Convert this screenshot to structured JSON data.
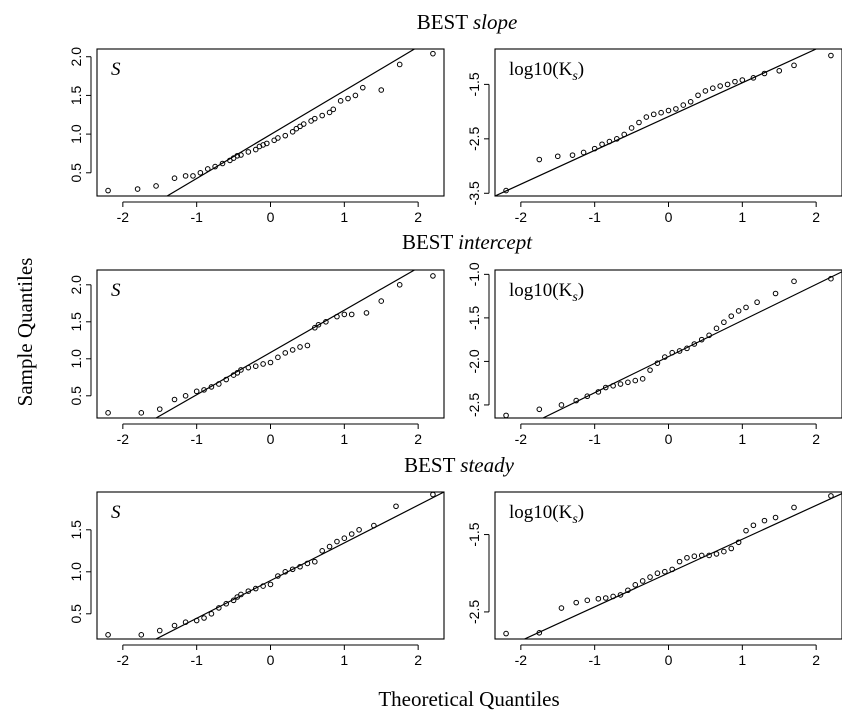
{
  "figure": {
    "xlabel": "Theoretical Quantiles",
    "ylabel": "Sample Quantiles"
  },
  "chart_data": [
    {
      "type": "scatter",
      "title_prefix": "BEST",
      "title_method": "slope",
      "panel_label": "S",
      "xlim": [
        -2.35,
        2.35
      ],
      "ylim": [
        0.2,
        2.1
      ],
      "xticks": [
        -2,
        -1,
        0,
        1,
        2
      ],
      "yticks": [
        0.5,
        1.0,
        1.5,
        2.0
      ],
      "ytick_labels": [
        "0.5",
        "1.0",
        "1.5",
        "2.0"
      ],
      "x": [
        -2.2,
        -1.8,
        -1.55,
        -1.3,
        -1.15,
        -1.05,
        -0.95,
        -0.85,
        -0.75,
        -0.65,
        -0.55,
        -0.5,
        -0.45,
        -0.4,
        -0.3,
        -0.2,
        -0.15,
        -0.1,
        -0.05,
        0.05,
        0.1,
        0.2,
        0.3,
        0.35,
        0.4,
        0.45,
        0.55,
        0.6,
        0.7,
        0.8,
        0.85,
        0.95,
        1.05,
        1.15,
        1.25,
        1.5,
        1.75,
        2.2
      ],
      "y": [
        0.27,
        0.29,
        0.33,
        0.43,
        0.46,
        0.46,
        0.5,
        0.55,
        0.58,
        0.62,
        0.66,
        0.69,
        0.72,
        0.73,
        0.77,
        0.8,
        0.84,
        0.86,
        0.88,
        0.92,
        0.95,
        0.98,
        1.03,
        1.07,
        1.1,
        1.13,
        1.17,
        1.2,
        1.24,
        1.28,
        1.32,
        1.43,
        1.46,
        1.5,
        1.6,
        1.57,
        1.9,
        2.04
      ],
      "ref_line": [
        [
          -1.4,
          0.2
        ],
        [
          1.95,
          2.1
        ]
      ]
    },
    {
      "type": "scatter",
      "title_prefix": "BEST",
      "title_method": "slope",
      "panel_label": "log10(K",
      "panel_label_sub": "s",
      "panel_label_close": ")",
      "xlim": [
        -2.35,
        2.35
      ],
      "ylim": [
        -3.55,
        -0.85
      ],
      "xticks": [
        -2,
        -1,
        0,
        1,
        2
      ],
      "yticks": [
        -3.5,
        -2.5,
        -1.5
      ],
      "ytick_labels": [
        "-3.5",
        "-2.5",
        "-1.5"
      ],
      "x": [
        -2.2,
        -1.75,
        -1.5,
        -1.3,
        -1.15,
        -1.0,
        -0.9,
        -0.8,
        -0.7,
        -0.6,
        -0.5,
        -0.4,
        -0.3,
        -0.2,
        -0.1,
        0.0,
        0.1,
        0.2,
        0.3,
        0.4,
        0.5,
        0.6,
        0.7,
        0.8,
        0.9,
        1.0,
        1.15,
        1.3,
        1.5,
        1.7,
        2.2
      ],
      "y": [
        -3.45,
        -2.88,
        -2.82,
        -2.8,
        -2.75,
        -2.68,
        -2.6,
        -2.55,
        -2.5,
        -2.42,
        -2.3,
        -2.2,
        -2.1,
        -2.05,
        -2.02,
        -1.98,
        -1.95,
        -1.88,
        -1.82,
        -1.7,
        -1.62,
        -1.57,
        -1.53,
        -1.5,
        -1.45,
        -1.42,
        -1.38,
        -1.3,
        -1.25,
        -1.15,
        -0.97
      ],
      "ref_line": [
        [
          -2.35,
          -3.55
        ],
        [
          2.0,
          -0.85
        ]
      ]
    },
    {
      "type": "scatter",
      "title_prefix": "BEST",
      "title_method": "intercept",
      "panel_label": "S",
      "xlim": [
        -2.35,
        2.35
      ],
      "ylim": [
        0.2,
        2.2
      ],
      "xticks": [
        -2,
        -1,
        0,
        1,
        2
      ],
      "yticks": [
        0.5,
        1.0,
        1.5,
        2.0
      ],
      "ytick_labels": [
        "0.5",
        "1.0",
        "1.5",
        "2.0"
      ],
      "x": [
        -2.2,
        -1.75,
        -1.5,
        -1.3,
        -1.15,
        -1.0,
        -0.9,
        -0.8,
        -0.7,
        -0.6,
        -0.5,
        -0.45,
        -0.4,
        -0.3,
        -0.2,
        -0.1,
        0.0,
        0.1,
        0.2,
        0.3,
        0.4,
        0.5,
        0.6,
        0.65,
        0.75,
        0.9,
        1.0,
        1.1,
        1.3,
        1.5,
        1.75,
        2.2
      ],
      "y": [
        0.27,
        0.27,
        0.32,
        0.45,
        0.5,
        0.56,
        0.58,
        0.62,
        0.66,
        0.72,
        0.78,
        0.81,
        0.85,
        0.88,
        0.9,
        0.93,
        0.95,
        1.02,
        1.08,
        1.12,
        1.16,
        1.18,
        1.42,
        1.46,
        1.5,
        1.57,
        1.6,
        1.6,
        1.62,
        1.78,
        2.0,
        2.12
      ],
      "ref_line": [
        [
          -1.55,
          0.2
        ],
        [
          1.95,
          2.2
        ]
      ]
    },
    {
      "type": "scatter",
      "title_prefix": "BEST",
      "title_method": "intercept",
      "panel_label": "log10(K",
      "panel_label_sub": "s",
      "panel_label_close": ")",
      "xlim": [
        -2.35,
        2.35
      ],
      "ylim": [
        -2.65,
        -0.95
      ],
      "xticks": [
        -2,
        -1,
        0,
        1,
        2
      ],
      "yticks": [
        -2.5,
        -2.0,
        -1.5,
        -1.0
      ],
      "ytick_labels": [
        "-2.5",
        "-2.0",
        "-1.5",
        "-1.0"
      ],
      "x": [
        -2.2,
        -1.75,
        -1.45,
        -1.25,
        -1.1,
        -0.95,
        -0.85,
        -0.75,
        -0.65,
        -0.55,
        -0.45,
        -0.35,
        -0.25,
        -0.15,
        -0.05,
        0.05,
        0.15,
        0.25,
        0.35,
        0.45,
        0.55,
        0.65,
        0.75,
        0.85,
        0.95,
        1.05,
        1.2,
        1.45,
        1.7,
        2.2
      ],
      "y": [
        -2.62,
        -2.55,
        -2.5,
        -2.45,
        -2.4,
        -2.35,
        -2.3,
        -2.28,
        -2.26,
        -2.24,
        -2.22,
        -2.2,
        -2.1,
        -2.02,
        -1.95,
        -1.9,
        -1.88,
        -1.85,
        -1.8,
        -1.75,
        -1.7,
        -1.62,
        -1.55,
        -1.48,
        -1.42,
        -1.38,
        -1.32,
        -1.22,
        -1.08,
        -1.05
      ],
      "ref_line": [
        [
          -1.7,
          -2.65
        ],
        [
          2.35,
          -0.97
        ]
      ]
    },
    {
      "type": "scatter",
      "title_prefix": "BEST",
      "title_method": "steady",
      "panel_label": "S",
      "xlim": [
        -2.35,
        2.35
      ],
      "ylim": [
        0.2,
        1.95
      ],
      "xticks": [
        -2,
        -1,
        0,
        1,
        2
      ],
      "yticks": [
        0.5,
        1.0,
        1.5
      ],
      "ytick_labels": [
        "0.5",
        "1.0",
        "1.5"
      ],
      "x": [
        -2.2,
        -1.75,
        -1.5,
        -1.3,
        -1.15,
        -1.0,
        -0.9,
        -0.8,
        -0.7,
        -0.6,
        -0.5,
        -0.45,
        -0.4,
        -0.3,
        -0.2,
        -0.1,
        0.0,
        0.1,
        0.2,
        0.3,
        0.4,
        0.5,
        0.6,
        0.7,
        0.8,
        0.9,
        1.0,
        1.1,
        1.2,
        1.4,
        1.7,
        2.2
      ],
      "y": [
        0.25,
        0.25,
        0.3,
        0.36,
        0.4,
        0.42,
        0.45,
        0.5,
        0.57,
        0.62,
        0.66,
        0.7,
        0.73,
        0.77,
        0.8,
        0.83,
        0.85,
        0.95,
        1.0,
        1.03,
        1.06,
        1.1,
        1.12,
        1.25,
        1.3,
        1.36,
        1.4,
        1.45,
        1.5,
        1.55,
        1.78,
        1.92
      ],
      "ref_line": [
        [
          -1.55,
          0.2
        ],
        [
          2.35,
          1.95
        ]
      ]
    },
    {
      "type": "scatter",
      "title_prefix": "BEST",
      "title_method": "steady",
      "panel_label": "log10(K",
      "panel_label_sub": "s",
      "panel_label_close": ")",
      "xlim": [
        -2.35,
        2.35
      ],
      "ylim": [
        -2.85,
        -0.95
      ],
      "xticks": [
        -2,
        -1,
        0,
        1,
        2
      ],
      "yticks": [
        -2.5,
        -1.5
      ],
      "ytick_labels": [
        "-2.5",
        "-1.5"
      ],
      "x": [
        -2.2,
        -1.75,
        -1.45,
        -1.25,
        -1.1,
        -0.95,
        -0.85,
        -0.75,
        -0.65,
        -0.55,
        -0.45,
        -0.35,
        -0.25,
        -0.15,
        -0.05,
        0.05,
        0.15,
        0.25,
        0.35,
        0.45,
        0.55,
        0.65,
        0.75,
        0.85,
        0.95,
        1.05,
        1.15,
        1.3,
        1.45,
        1.7,
        2.2
      ],
      "y": [
        -2.78,
        -2.77,
        -2.45,
        -2.38,
        -2.35,
        -2.33,
        -2.32,
        -2.3,
        -2.28,
        -2.22,
        -2.15,
        -2.1,
        -2.05,
        -2.0,
        -1.98,
        -1.95,
        -1.85,
        -1.8,
        -1.78,
        -1.77,
        -1.77,
        -1.75,
        -1.72,
        -1.68,
        -1.6,
        -1.45,
        -1.38,
        -1.32,
        -1.28,
        -1.15,
        -1.0
      ],
      "ref_line": [
        [
          -1.95,
          -2.85
        ],
        [
          2.35,
          -0.97
        ]
      ]
    }
  ]
}
